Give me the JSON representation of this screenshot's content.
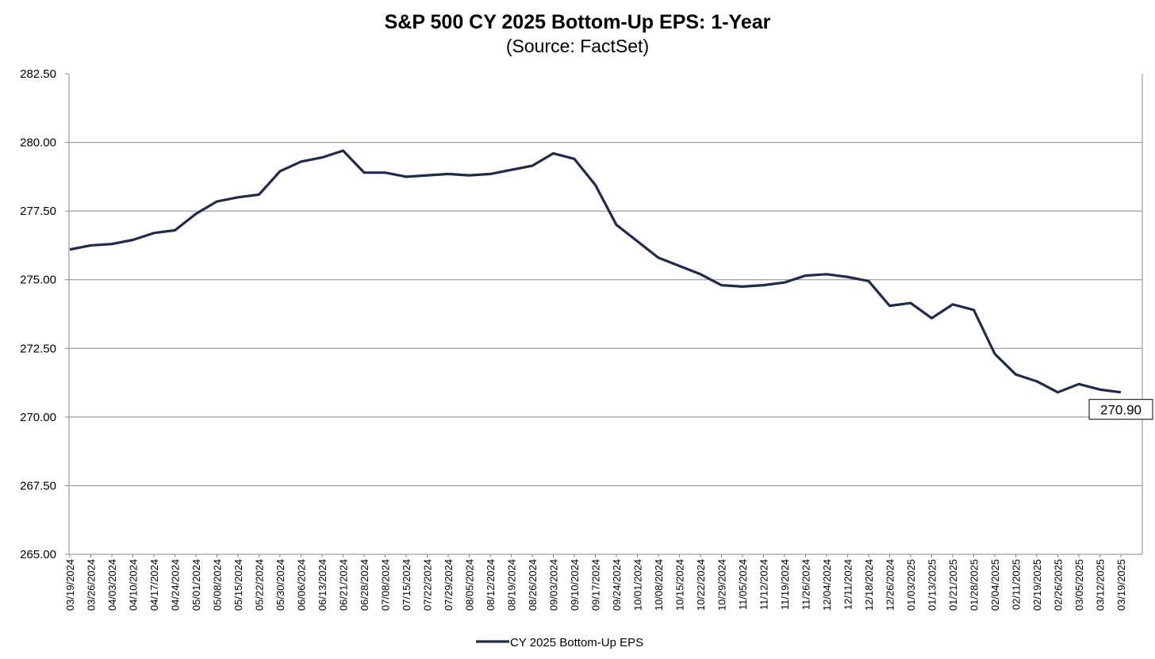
{
  "chart_data": {
    "type": "line",
    "title": "S&P 500 CY 2025 Bottom-Up EPS: 1-Year",
    "subtitle": "(Source: FactSet)",
    "categories": [
      "03/19/2024",
      "03/26/2024",
      "04/03/2024",
      "04/10/2024",
      "04/17/2024",
      "04/24/2024",
      "05/01/2024",
      "05/08/2024",
      "05/15/2024",
      "05/22/2024",
      "05/30/2024",
      "06/06/2024",
      "06/13/2024",
      "06/21/2024",
      "06/28/2024",
      "07/08/2024",
      "07/15/2024",
      "07/22/2024",
      "07/29/2024",
      "08/05/2024",
      "08/12/2024",
      "08/19/2024",
      "08/26/2024",
      "09/03/2024",
      "09/10/2024",
      "09/17/2024",
      "09/24/2024",
      "10/01/2024",
      "10/08/2024",
      "10/15/2024",
      "10/22/2024",
      "10/29/2024",
      "11/05/2024",
      "11/12/2024",
      "11/19/2024",
      "11/26/2024",
      "12/04/2024",
      "12/11/2024",
      "12/18/2024",
      "12/26/2024",
      "01/03/2025",
      "01/13/2025",
      "01/21/2025",
      "01/28/2025",
      "02/04/2025",
      "02/11/2025",
      "02/19/2025",
      "02/26/2025",
      "03/05/2025",
      "03/12/2025",
      "03/19/2025"
    ],
    "series": [
      {
        "name": "CY 2025 Bottom-Up EPS",
        "color": "#1f2a4e",
        "values": [
          276.1,
          276.25,
          276.3,
          276.45,
          276.7,
          276.8,
          277.4,
          277.85,
          278.0,
          278.1,
          278.95,
          279.3,
          279.45,
          279.7,
          278.9,
          278.9,
          278.75,
          278.8,
          278.85,
          278.8,
          278.85,
          279.0,
          279.15,
          279.6,
          279.4,
          278.45,
          277.0,
          276.4,
          275.8,
          275.5,
          275.2,
          274.8,
          274.75,
          274.8,
          274.9,
          275.15,
          275.2,
          275.1,
          274.95,
          274.05,
          274.15,
          273.6,
          274.1,
          273.9,
          272.3,
          271.55,
          271.3,
          270.9,
          271.2,
          271.0,
          270.9
        ],
        "value_labels": [
          null,
          null,
          null,
          null,
          null,
          null,
          null,
          null,
          null,
          null,
          null,
          null,
          null,
          null,
          null,
          null,
          null,
          null,
          null,
          null,
          null,
          null,
          null,
          null,
          null,
          null,
          null,
          null,
          null,
          null,
          null,
          null,
          null,
          null,
          null,
          null,
          null,
          null,
          null,
          null,
          null,
          null,
          null,
          null,
          null,
          null,
          null,
          null,
          null,
          null,
          "270.90"
        ]
      }
    ],
    "ylim": [
      265,
      282.5
    ],
    "yticks": [
      {
        "value": 265,
        "label": "265.00"
      },
      {
        "value": 267.5,
        "label": "267.50"
      },
      {
        "value": 270,
        "label": "270.00"
      },
      {
        "value": 272.5,
        "label": "272.50"
      },
      {
        "value": 275,
        "label": "275.00"
      },
      {
        "value": 277.5,
        "label": "277.50"
      },
      {
        "value": 280,
        "label": "280.00"
      },
      {
        "value": 282.5,
        "label": "282.50"
      }
    ],
    "grid": true,
    "legend": "bottom"
  }
}
